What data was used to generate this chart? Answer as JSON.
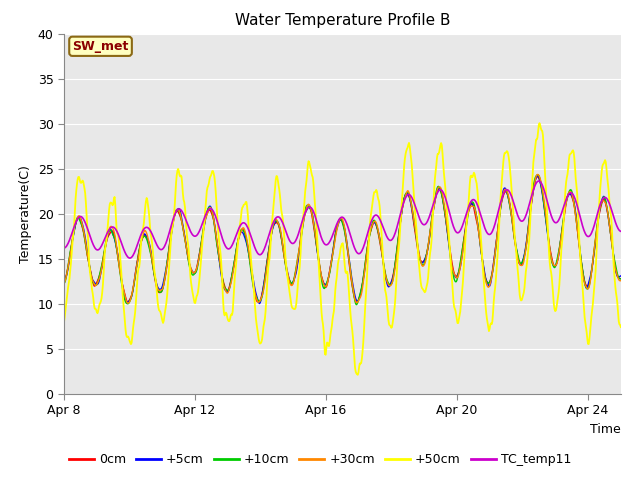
{
  "title": "Water Temperature Profile B",
  "xlabel": "Time",
  "ylabel": "Temperature(C)",
  "ylim": [
    0,
    40
  ],
  "xlim_days": [
    0,
    17
  ],
  "x_tick_labels": [
    "Apr 8",
    "Apr 12",
    "Apr 16",
    "Apr 20",
    "Apr 24"
  ],
  "x_tick_positions": [
    0,
    4,
    8,
    12,
    16
  ],
  "annotation_text": "SW_met",
  "annotation_bg": "#FFFFC0",
  "annotation_text_color": "#8B0000",
  "annotation_edge_color": "#8B6914",
  "plot_bg_color": "#E8E8E8",
  "grid_color": "#FFFFFF",
  "series": [
    {
      "label": "0cm",
      "color": "#FF0000",
      "lw": 1.0
    },
    {
      "label": "+5cm",
      "color": "#0000FF",
      "lw": 1.0
    },
    {
      "label": "+10cm",
      "color": "#00CC00",
      "lw": 1.0
    },
    {
      "label": "+30cm",
      "color": "#FF8800",
      "lw": 1.0
    },
    {
      "label": "+50cm",
      "color": "#FFFF00",
      "lw": 1.3
    },
    {
      "label": "TC_temp11",
      "color": "#CC00CC",
      "lw": 1.2
    }
  ],
  "legend_fontsize": 9,
  "title_fontsize": 11
}
